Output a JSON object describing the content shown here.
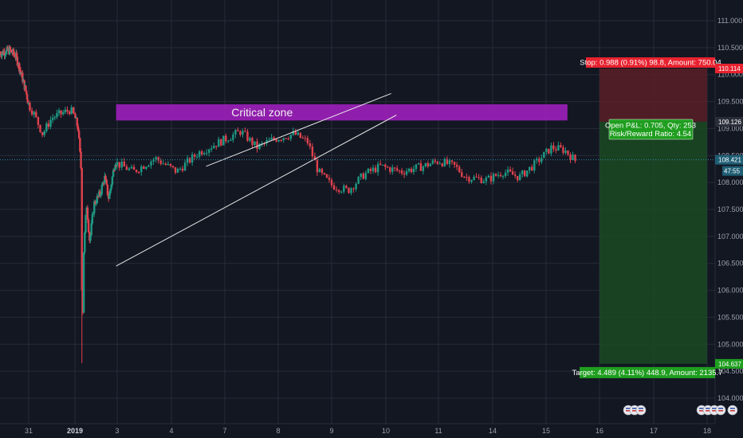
{
  "colors": {
    "background": "#131722",
    "grid": "#262b38",
    "candle_up": "#1e9a84",
    "candle_down": "#e0424d",
    "stop_zone": "#5a1f26",
    "target_zone": "#1b4a22",
    "stop_label": "#e8222f",
    "target_label": "#1f9e1f",
    "critical_zone": "#9b1fb8",
    "trendline": "#e6e6e6",
    "current_price_line": "#2b8aa8",
    "current_price_tag": "#1f2a3a"
  },
  "chart_data": {
    "type": "candlestick",
    "instrument_note": "",
    "y_range": [
      103.65,
      111.2
    ],
    "x_range": [
      -3.0,
      18.0
    ],
    "y_ticks": [
      "111.000",
      "110.500",
      "110.000",
      "109.500",
      "109.000",
      "108.500",
      "108.000",
      "107.500",
      "107.000",
      "106.500",
      "106.000",
      "105.500",
      "105.000",
      "104.500",
      "104.000"
    ],
    "y_tick_values": [
      111.0,
      110.5,
      110.0,
      109.5,
      109.0,
      108.5,
      108.0,
      107.5,
      107.0,
      106.5,
      106.0,
      105.5,
      105.0,
      104.5,
      104.0
    ],
    "x_ticks": [
      {
        "label": "31",
        "x": -1.0,
        "bold": false
      },
      {
        "label": "2019",
        "x": 0.0,
        "bold": true
      },
      {
        "label": "3",
        "x": 2.0,
        "bold": false
      },
      {
        "label": "4",
        "x": 3.0,
        "bold": false
      },
      {
        "label": "7",
        "x": 4.0,
        "bold": false
      },
      {
        "label": "8",
        "x": 5.0,
        "bold": false
      },
      {
        "label": "9",
        "x": 6.0,
        "bold": false
      },
      {
        "label": "10",
        "x": 7.0,
        "bold": false
      },
      {
        "label": "11",
        "x": 8.0,
        "bold": false
      },
      {
        "label": "14",
        "x": 9.0,
        "bold": false
      },
      {
        "label": "15",
        "x": 10.0,
        "bold": false
      },
      {
        "label": "16",
        "x": 11.0,
        "bold": false
      },
      {
        "label": "17",
        "x": 12.0,
        "bold": false
      },
      {
        "label": "18",
        "x": 13.0,
        "bold": false
      }
    ],
    "price_path": [
      [
        -3.0,
        110.4
      ],
      [
        -2.3,
        110.45
      ],
      [
        -1.9,
        110.35
      ],
      [
        -1.5,
        110.0
      ],
      [
        -1.2,
        109.7
      ],
      [
        -0.9,
        109.3
      ],
      [
        -0.7,
        108.9
      ],
      [
        -0.5,
        109.2
      ],
      [
        -0.1,
        109.35
      ],
      [
        0.15,
        109.0
      ],
      [
        0.3,
        108.2
      ],
      [
        0.35,
        104.65
      ],
      [
        0.4,
        106.6
      ],
      [
        0.55,
        107.6
      ],
      [
        0.7,
        106.9
      ],
      [
        0.9,
        107.6
      ],
      [
        1.2,
        107.8
      ],
      [
        1.4,
        108.1
      ],
      [
        1.6,
        107.7
      ],
      [
        1.9,
        108.4
      ],
      [
        2.3,
        108.2
      ],
      [
        2.7,
        108.45
      ],
      [
        3.1,
        108.2
      ],
      [
        3.5,
        108.55
      ],
      [
        3.9,
        108.75
      ],
      [
        4.3,
        108.95
      ],
      [
        4.6,
        108.65
      ],
      [
        4.9,
        108.8
      ],
      [
        5.3,
        108.9
      ],
      [
        5.55,
        108.75
      ],
      [
        5.75,
        108.2
      ],
      [
        6.0,
        107.95
      ],
      [
        6.3,
        107.85
      ],
      [
        6.6,
        108.15
      ],
      [
        6.9,
        108.3
      ],
      [
        7.3,
        108.2
      ],
      [
        7.7,
        108.3
      ],
      [
        8.0,
        108.4
      ],
      [
        8.3,
        108.3
      ],
      [
        8.5,
        108.1
      ],
      [
        8.9,
        108.05
      ],
      [
        9.2,
        108.2
      ],
      [
        9.5,
        108.1
      ],
      [
        9.8,
        108.35
      ],
      [
        10.1,
        108.65
      ],
      [
        10.35,
        108.6
      ],
      [
        10.55,
        108.4
      ]
    ],
    "critical_zone": {
      "label": "Critical zone",
      "x_from": 1.95,
      "x_to": 10.4,
      "y_from": 109.15,
      "y_to": 109.45
    },
    "trendlines": [
      {
        "from": [
          1.95,
          106.45
        ],
        "to": [
          7.2,
          109.25
        ]
      },
      {
        "from": [
          3.65,
          108.3
        ],
        "to": [
          7.1,
          109.65
        ]
      }
    ],
    "position": {
      "x_from": 11.0,
      "x_to": 13.0,
      "entry": 109.126,
      "stop": 110.114,
      "target": 104.637,
      "stop_label": "Stop: 0.988 (0.91%) 98.8, Amount: 750.04",
      "open_pnl_label": "Open P&L: 0.705, Qty: 253",
      "risk_reward_label": "Risk/Reward Ratio: 4.54",
      "target_label": "Target: 4.489 (4.11%) 448.9, Amount: 2135.7"
    },
    "price_tags": {
      "stop": "110.114",
      "entry": "109.126",
      "current": "108.421",
      "countdown": "47:55",
      "target": "104.637"
    },
    "current_price": 108.421
  },
  "event_icons": [
    {
      "x": 11.75,
      "count": 3
    },
    {
      "x": 14.45,
      "count": 4
    },
    {
      "x": 17.1,
      "count": 1
    }
  ]
}
